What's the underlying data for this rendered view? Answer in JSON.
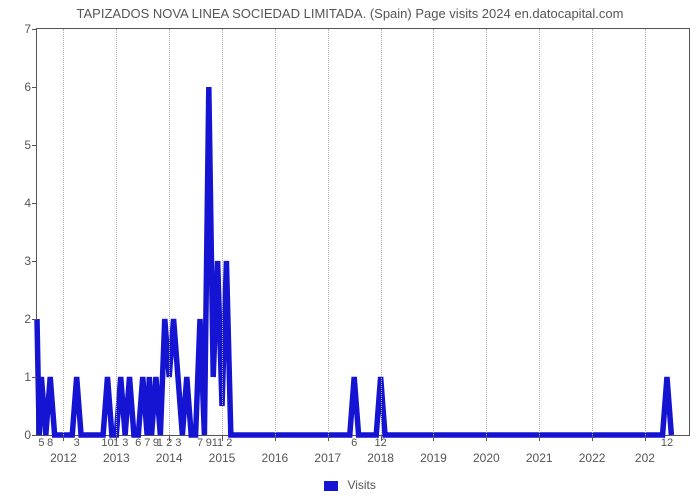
{
  "title": "TAPIZADOS NOVA LINEA SOCIEDAD LIMITADA. (Spain) Page visits 2024 en.datocapital.com",
  "chart": {
    "type": "line",
    "line_color": "#1414d2",
    "line_width": 2.2,
    "background_color": "#ffffff",
    "grid_color": "#b0b0b0",
    "tick_color": "#555555",
    "title_fontsize": 13,
    "label_fontsize": 12,
    "xlim": [
      0,
      148
    ],
    "ylim": [
      0,
      7
    ],
    "yticks": [
      0,
      1,
      2,
      3,
      4,
      5,
      6,
      7
    ],
    "year_ticks": [
      {
        "label": "2012",
        "x": 6
      },
      {
        "label": "2013",
        "x": 18
      },
      {
        "label": "2014",
        "x": 30
      },
      {
        "label": "2015",
        "x": 42
      },
      {
        "label": "2016",
        "x": 54
      },
      {
        "label": "2017",
        "x": 66
      },
      {
        "label": "2018",
        "x": 78
      },
      {
        "label": "2019",
        "x": 90
      },
      {
        "label": "2020",
        "x": 102
      },
      {
        "label": "2021",
        "x": 114
      },
      {
        "label": "2022",
        "x": 126
      },
      {
        "label": "202",
        "x": 138
      }
    ],
    "data_x_labels": [
      {
        "label": "5",
        "x": 1
      },
      {
        "label": "8",
        "x": 3
      },
      {
        "label": "3",
        "x": 9
      },
      {
        "label": "10",
        "x": 16
      },
      {
        "label": "1 3",
        "x": 19
      },
      {
        "label": "6 7",
        "x": 24
      },
      {
        "label": "9",
        "x": 27
      },
      {
        "label": "1 2 3",
        "x": 30
      },
      {
        "label": "7",
        "x": 37
      },
      {
        "label": "9",
        "x": 39
      },
      {
        "label": "11 2",
        "x": 42
      },
      {
        "label": "6",
        "x": 72
      },
      {
        "label": "12",
        "x": 78
      },
      {
        "label": "12",
        "x": 143
      }
    ],
    "series": {
      "color": "#1414d2",
      "points": [
        {
          "x": 0,
          "y": 2
        },
        {
          "x": 0.5,
          "y": 0
        },
        {
          "x": 1,
          "y": 1
        },
        {
          "x": 2,
          "y": 0
        },
        {
          "x": 3,
          "y": 1
        },
        {
          "x": 4,
          "y": 0
        },
        {
          "x": 8,
          "y": 0
        },
        {
          "x": 9,
          "y": 1
        },
        {
          "x": 10,
          "y": 0
        },
        {
          "x": 15,
          "y": 0
        },
        {
          "x": 16,
          "y": 1
        },
        {
          "x": 17,
          "y": 0
        },
        {
          "x": 18,
          "y": 0
        },
        {
          "x": 19,
          "y": 1
        },
        {
          "x": 20,
          "y": 0
        },
        {
          "x": 21,
          "y": 1
        },
        {
          "x": 22,
          "y": 0
        },
        {
          "x": 23,
          "y": 0
        },
        {
          "x": 24,
          "y": 1
        },
        {
          "x": 25,
          "y": 0
        },
        {
          "x": 25.5,
          "y": 1
        },
        {
          "x": 26,
          "y": 0
        },
        {
          "x": 27,
          "y": 1
        },
        {
          "x": 28,
          "y": 0
        },
        {
          "x": 29,
          "y": 2
        },
        {
          "x": 30,
          "y": 1
        },
        {
          "x": 31,
          "y": 2
        },
        {
          "x": 32,
          "y": 1
        },
        {
          "x": 33,
          "y": 0
        },
        {
          "x": 34,
          "y": 1
        },
        {
          "x": 35,
          "y": 0
        },
        {
          "x": 36,
          "y": 0
        },
        {
          "x": 37,
          "y": 2
        },
        {
          "x": 38,
          "y": 0
        },
        {
          "x": 39,
          "y": 6
        },
        {
          "x": 40,
          "y": 1
        },
        {
          "x": 41,
          "y": 3
        },
        {
          "x": 42,
          "y": 0.5
        },
        {
          "x": 43,
          "y": 3
        },
        {
          "x": 44,
          "y": 0
        },
        {
          "x": 45,
          "y": 0
        },
        {
          "x": 71,
          "y": 0
        },
        {
          "x": 72,
          "y": 1
        },
        {
          "x": 73,
          "y": 0
        },
        {
          "x": 77,
          "y": 0
        },
        {
          "x": 78,
          "y": 1
        },
        {
          "x": 79,
          "y": 0
        },
        {
          "x": 142,
          "y": 0
        },
        {
          "x": 143,
          "y": 1
        },
        {
          "x": 144,
          "y": 0
        }
      ]
    }
  },
  "legend": {
    "label": "Visits",
    "swatch_color": "#1414d2"
  }
}
